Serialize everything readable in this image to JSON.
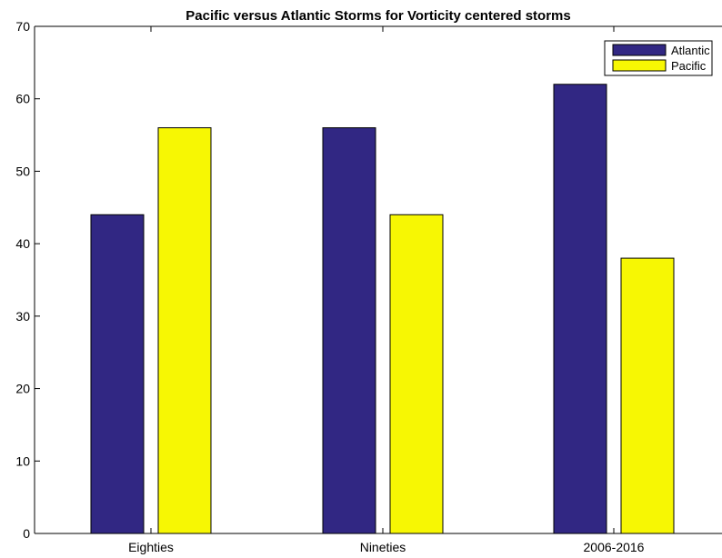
{
  "chart_data": {
    "type": "bar",
    "title": "Pacific versus Atlantic Storms for Vorticity centered storms",
    "xlabel": "",
    "ylabel": "",
    "categories": [
      "Eighties",
      "Nineties",
      "2006-2016"
    ],
    "series": [
      {
        "name": "Atlantic",
        "values": [
          44,
          56,
          62
        ],
        "color": "#312783"
      },
      {
        "name": "Pacific",
        "values": [
          56,
          44,
          38
        ],
        "color": "#f7f703"
      }
    ],
    "ylim": [
      0,
      70
    ],
    "yticks": [
      0,
      10,
      20,
      30,
      40,
      50,
      60,
      70
    ],
    "grid": false,
    "legend_position": "top-right"
  }
}
